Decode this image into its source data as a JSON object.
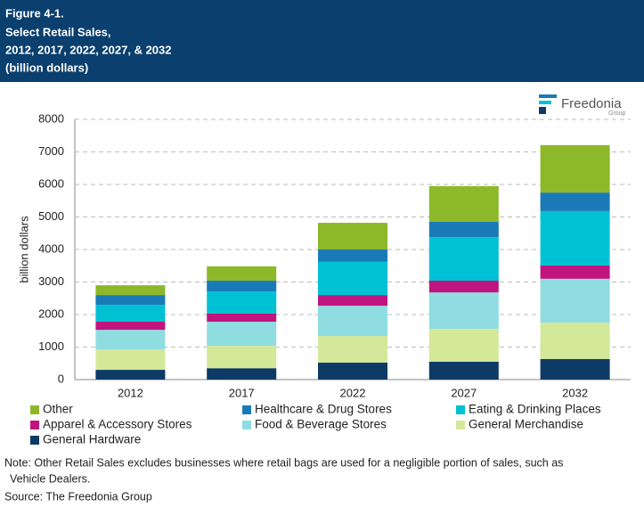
{
  "header": {
    "lines": [
      "Figure 4-1.",
      "Select Retail Sales,",
      "2012, 2017, 2022, 2027, & 2032",
      "(billion dollars)"
    ]
  },
  "logo": {
    "name": "Freedonia",
    "sub": "Group"
  },
  "chart_data": {
    "type": "stacked_bar",
    "y_label": "billion dollars",
    "categories": [
      "2012",
      "2017",
      "2022",
      "2027",
      "2032"
    ],
    "series": [
      {
        "name": "General Hardware",
        "color": "#0e3a66",
        "values": [
          300,
          350,
          520,
          550,
          630
        ]
      },
      {
        "name": "General Merchandise",
        "color": "#d4e89a",
        "values": [
          630,
          690,
          820,
          1010,
          1120
        ]
      },
      {
        "name": "Food & Beverage Stores",
        "color": "#8fdde0",
        "values": [
          600,
          740,
          930,
          1120,
          1350
        ]
      },
      {
        "name": "Apparel & Accessory Stores",
        "color": "#c0147f",
        "values": [
          250,
          250,
          330,
          360,
          410
        ]
      },
      {
        "name": "Eating & Drinking Places",
        "color": "#00c1d4",
        "values": [
          520,
          680,
          1020,
          1340,
          1670
        ]
      },
      {
        "name": "Healthcare & Drug Stores",
        "color": "#1a7ab8",
        "values": [
          300,
          330,
          380,
          470,
          570
        ]
      },
      {
        "name": "Other",
        "color": "#8db82a",
        "values": [
          300,
          440,
          820,
          1100,
          1460
        ]
      }
    ],
    "ylim": [
      0,
      8000
    ],
    "yticks": [
      0,
      1000,
      2000,
      3000,
      4000,
      5000,
      6000,
      7000,
      8000
    ],
    "grid": true
  },
  "notes": [
    "Note: Other Retail Sales excludes businesses where retail bags are used for a negligible portion of sales, such as",
    "Vehicle Dealers.",
    "Source: The Freedonia Group"
  ]
}
